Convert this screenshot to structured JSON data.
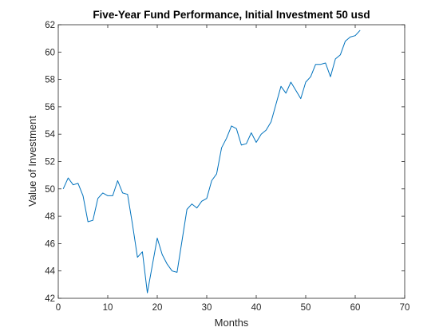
{
  "chart_data": {
    "type": "line",
    "title": "Five-Year Fund Performance, Initial Investment 50 usd",
    "xlabel": "Months",
    "ylabel": "Value of Investment",
    "xlim": [
      0,
      70
    ],
    "ylim": [
      42,
      62
    ],
    "xticks": [
      "0",
      "10",
      "20",
      "30",
      "40",
      "50",
      "60",
      "70"
    ],
    "yticks": [
      "42",
      "44",
      "46",
      "48",
      "50",
      "52",
      "54",
      "56",
      "58",
      "60",
      "62"
    ],
    "grid": false,
    "line_color": "#0072BD",
    "series": [
      {
        "x": [
          1,
          2,
          3,
          4,
          5,
          6,
          7,
          8,
          9,
          10,
          11,
          12,
          13,
          14,
          15,
          16,
          17,
          18,
          19,
          20,
          21,
          22,
          23,
          24,
          25,
          26,
          27,
          28,
          29,
          30,
          31,
          32,
          33,
          34,
          35,
          36,
          37,
          38,
          39,
          40,
          41,
          42,
          43,
          44,
          45,
          46,
          47,
          48,
          49,
          50,
          51,
          52,
          53,
          54,
          55,
          56,
          57,
          58,
          59,
          60,
          61
        ],
        "values": [
          50.0,
          50.8,
          50.3,
          50.4,
          49.5,
          47.6,
          47.7,
          49.3,
          49.7,
          49.5,
          49.5,
          50.6,
          49.7,
          49.6,
          47.4,
          45.0,
          45.4,
          42.4,
          44.4,
          46.4,
          45.2,
          44.5,
          44.0,
          43.9,
          46.2,
          48.5,
          48.9,
          48.6,
          49.1,
          49.3,
          50.6,
          51.1,
          53.0,
          53.7,
          54.6,
          54.4,
          53.2,
          53.3,
          54.1,
          53.4,
          54.0,
          54.3,
          54.9,
          56.2,
          57.5,
          57.0,
          57.8,
          57.2,
          56.6,
          57.8,
          58.2,
          59.1,
          59.1,
          59.2,
          58.2,
          59.5,
          59.8,
          60.8,
          61.1,
          61.2,
          61.6
        ]
      }
    ]
  }
}
